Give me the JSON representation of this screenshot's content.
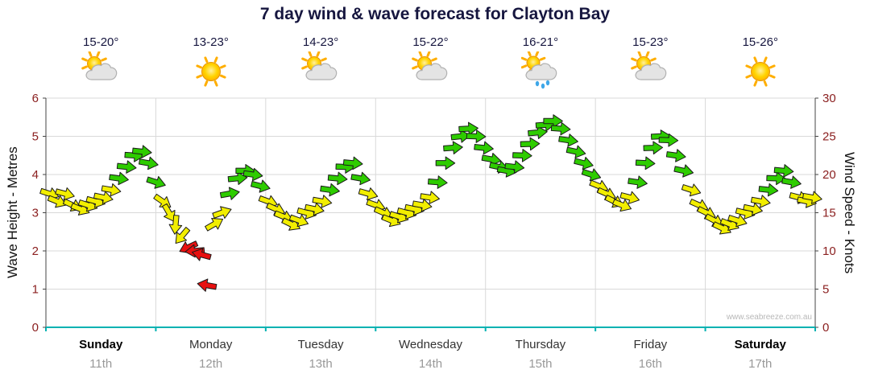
{
  "title": "7 day wind & wave forecast for Clayton Bay",
  "watermark": "www.seabreeze.com.au",
  "axes": {
    "left_title": "Wave Height - Metres",
    "right_title": "Wind Speed - Knots",
    "left_ticks": [
      0,
      1,
      2,
      3,
      4,
      5,
      6
    ],
    "right_ticks": [
      0,
      5,
      10,
      15,
      20,
      25,
      30
    ]
  },
  "days": [
    {
      "name": "Sunday",
      "date": "11th",
      "temp": "15-20°",
      "icon": "sun-cloud",
      "emphasis": true
    },
    {
      "name": "Monday",
      "date": "12th",
      "temp": "13-23°",
      "icon": "sun",
      "emphasis": false
    },
    {
      "name": "Tuesday",
      "date": "13th",
      "temp": "14-23°",
      "icon": "sun-cloud",
      "emphasis": false
    },
    {
      "name": "Wednesday",
      "date": "14th",
      "temp": "15-22°",
      "icon": "sun-cloud",
      "emphasis": false
    },
    {
      "name": "Thursday",
      "date": "15th",
      "temp": "16-21°",
      "icon": "sun-cloud-rain",
      "emphasis": false
    },
    {
      "name": "Friday",
      "date": "16th",
      "temp": "15-23°",
      "icon": "sun-cloud",
      "emphasis": false
    },
    {
      "name": "Saturday",
      "date": "17th",
      "temp": "15-26°",
      "icon": "sun",
      "emphasis": true
    }
  ],
  "palette": {
    "yellow": "#f2ee00",
    "green": "#2ecc00",
    "red": "#e81010",
    "grid": "#d9d9d9",
    "axis_label": "#8b2020",
    "axis_line": "#444444",
    "teal_axis": "#00b2b2",
    "arrow_outline": "#1a1a1a"
  },
  "chart_data": {
    "type": "wind_vector_timeseries",
    "title": "7 day wind & wave forecast for Clayton Bay",
    "description": "Wind arrows over 7 days; vertical position = wind speed (knots, right axis); arrow colour = wind strength band; arrow rotation = wind direction (degrees clockwise, 0 = pointing right).",
    "x_axis": {
      "unit": "days",
      "range": [
        0,
        7
      ],
      "day_labels": [
        "Sunday 11th",
        "Monday 12th",
        "Tuesday 13th",
        "Wednesday 14th",
        "Thursday 15th",
        "Friday 16th",
        "Saturday 17th"
      ]
    },
    "wind_speed_axis": {
      "label": "Wind Speed - Knots",
      "range": [
        0,
        30
      ],
      "ticks": [
        0,
        5,
        10,
        15,
        20,
        25,
        30
      ]
    },
    "wave_height_axis": {
      "label": "Wave Height - Metres",
      "range": [
        0,
        6
      ],
      "ticks": [
        0,
        1,
        2,
        3,
        4,
        5,
        6
      ]
    },
    "grid": true,
    "arrow_format": [
      "t_days",
      "knots",
      "direction_deg",
      "color"
    ],
    "arrows": [
      [
        0.03,
        17.5,
        18,
        "yellow"
      ],
      [
        0.1,
        16.5,
        22,
        "yellow"
      ],
      [
        0.17,
        17.5,
        15,
        "yellow"
      ],
      [
        0.24,
        16.0,
        25,
        "yellow"
      ],
      [
        0.31,
        15.5,
        22,
        "yellow"
      ],
      [
        0.38,
        16.0,
        18,
        "yellow"
      ],
      [
        0.45,
        16.5,
        15,
        "yellow"
      ],
      [
        0.52,
        17.0,
        12,
        "yellow"
      ],
      [
        0.59,
        18.0,
        10,
        "yellow"
      ],
      [
        0.66,
        19.5,
        8,
        "green"
      ],
      [
        0.73,
        21.0,
        6,
        "green"
      ],
      [
        0.8,
        22.5,
        4,
        "green"
      ],
      [
        0.87,
        23.0,
        6,
        "green"
      ],
      [
        0.93,
        21.5,
        10,
        "green"
      ],
      [
        1.0,
        19.0,
        18,
        "green"
      ],
      [
        1.06,
        16.5,
        35,
        "yellow"
      ],
      [
        1.12,
        15.0,
        60,
        "yellow"
      ],
      [
        1.18,
        13.5,
        95,
        "yellow"
      ],
      [
        1.24,
        12.0,
        130,
        "yellow"
      ],
      [
        1.3,
        10.5,
        155,
        "red"
      ],
      [
        1.36,
        10.0,
        175,
        "red"
      ],
      [
        1.42,
        9.5,
        195,
        "red"
      ],
      [
        1.47,
        5.5,
        190,
        "red"
      ],
      [
        1.53,
        13.5,
        -30,
        "yellow"
      ],
      [
        1.6,
        15.0,
        -20,
        "yellow"
      ],
      [
        1.67,
        17.5,
        -10,
        "green"
      ],
      [
        1.74,
        19.5,
        -5,
        "green"
      ],
      [
        1.81,
        20.5,
        0,
        "green"
      ],
      [
        1.88,
        20.0,
        8,
        "green"
      ],
      [
        1.95,
        18.5,
        14,
        "green"
      ],
      [
        2.02,
        16.5,
        20,
        "yellow"
      ],
      [
        2.09,
        15.5,
        24,
        "yellow"
      ],
      [
        2.16,
        14.5,
        22,
        "yellow"
      ],
      [
        2.23,
        13.5,
        26,
        "yellow"
      ],
      [
        2.3,
        14.0,
        20,
        "yellow"
      ],
      [
        2.37,
        15.0,
        15,
        "yellow"
      ],
      [
        2.44,
        15.5,
        12,
        "yellow"
      ],
      [
        2.51,
        16.5,
        10,
        "yellow"
      ],
      [
        2.58,
        18.0,
        8,
        "green"
      ],
      [
        2.65,
        19.5,
        5,
        "green"
      ],
      [
        2.72,
        21.0,
        2,
        "green"
      ],
      [
        2.79,
        21.5,
        5,
        "green"
      ],
      [
        2.86,
        19.5,
        10,
        "green"
      ],
      [
        2.93,
        17.5,
        16,
        "yellow"
      ],
      [
        3.0,
        16.0,
        20,
        "yellow"
      ],
      [
        3.07,
        15.0,
        24,
        "yellow"
      ],
      [
        3.14,
        14.0,
        22,
        "yellow"
      ],
      [
        3.21,
        14.5,
        18,
        "yellow"
      ],
      [
        3.28,
        15.0,
        15,
        "yellow"
      ],
      [
        3.35,
        15.5,
        12,
        "yellow"
      ],
      [
        3.42,
        16.0,
        10,
        "yellow"
      ],
      [
        3.49,
        17.0,
        8,
        "yellow"
      ],
      [
        3.56,
        19.0,
        4,
        "green"
      ],
      [
        3.63,
        21.5,
        0,
        "green"
      ],
      [
        3.7,
        23.5,
        -4,
        "green"
      ],
      [
        3.77,
        25.0,
        -6,
        "green"
      ],
      [
        3.84,
        26.0,
        -3,
        "green"
      ],
      [
        3.91,
        25.0,
        2,
        "green"
      ],
      [
        3.98,
        23.5,
        6,
        "green"
      ],
      [
        4.05,
        22.0,
        10,
        "green"
      ],
      [
        4.12,
        21.0,
        12,
        "green"
      ],
      [
        4.19,
        20.5,
        10,
        "green"
      ],
      [
        4.26,
        21.0,
        6,
        "green"
      ],
      [
        4.33,
        22.5,
        2,
        "green"
      ],
      [
        4.4,
        24.0,
        -2,
        "green"
      ],
      [
        4.47,
        25.5,
        -5,
        "green"
      ],
      [
        4.54,
        26.5,
        -4,
        "green"
      ],
      [
        4.61,
        27.0,
        0,
        "green"
      ],
      [
        4.68,
        26.0,
        4,
        "green"
      ],
      [
        4.75,
        24.5,
        8,
        "green"
      ],
      [
        4.82,
        23.0,
        12,
        "green"
      ],
      [
        4.89,
        21.5,
        14,
        "green"
      ],
      [
        4.96,
        20.0,
        18,
        "green"
      ],
      [
        5.03,
        18.5,
        22,
        "yellow"
      ],
      [
        5.1,
        17.5,
        24,
        "yellow"
      ],
      [
        5.17,
        16.5,
        26,
        "yellow"
      ],
      [
        5.24,
        16.0,
        22,
        "yellow"
      ],
      [
        5.31,
        17.0,
        15,
        "yellow"
      ],
      [
        5.38,
        19.0,
        8,
        "green"
      ],
      [
        5.45,
        21.5,
        3,
        "green"
      ],
      [
        5.52,
        23.5,
        -2,
        "green"
      ],
      [
        5.59,
        25.0,
        -3,
        "green"
      ],
      [
        5.66,
        24.5,
        2,
        "green"
      ],
      [
        5.73,
        22.5,
        8,
        "green"
      ],
      [
        5.8,
        20.5,
        12,
        "green"
      ],
      [
        5.87,
        18.0,
        18,
        "yellow"
      ],
      [
        5.94,
        16.0,
        24,
        "yellow"
      ],
      [
        6.01,
        15.0,
        26,
        "yellow"
      ],
      [
        6.08,
        14.0,
        28,
        "yellow"
      ],
      [
        6.15,
        13.0,
        26,
        "yellow"
      ],
      [
        6.22,
        13.5,
        22,
        "yellow"
      ],
      [
        6.29,
        14.0,
        18,
        "yellow"
      ],
      [
        6.36,
        15.0,
        14,
        "yellow"
      ],
      [
        6.43,
        15.5,
        12,
        "yellow"
      ],
      [
        6.5,
        16.5,
        10,
        "yellow"
      ],
      [
        6.57,
        18.0,
        6,
        "green"
      ],
      [
        6.64,
        19.5,
        2,
        "green"
      ],
      [
        6.71,
        20.5,
        5,
        "green"
      ],
      [
        6.78,
        19.0,
        10,
        "green"
      ],
      [
        6.85,
        17.0,
        15,
        "yellow"
      ],
      [
        6.92,
        16.5,
        12,
        "yellow"
      ],
      [
        6.97,
        17.0,
        10,
        "yellow"
      ]
    ]
  }
}
